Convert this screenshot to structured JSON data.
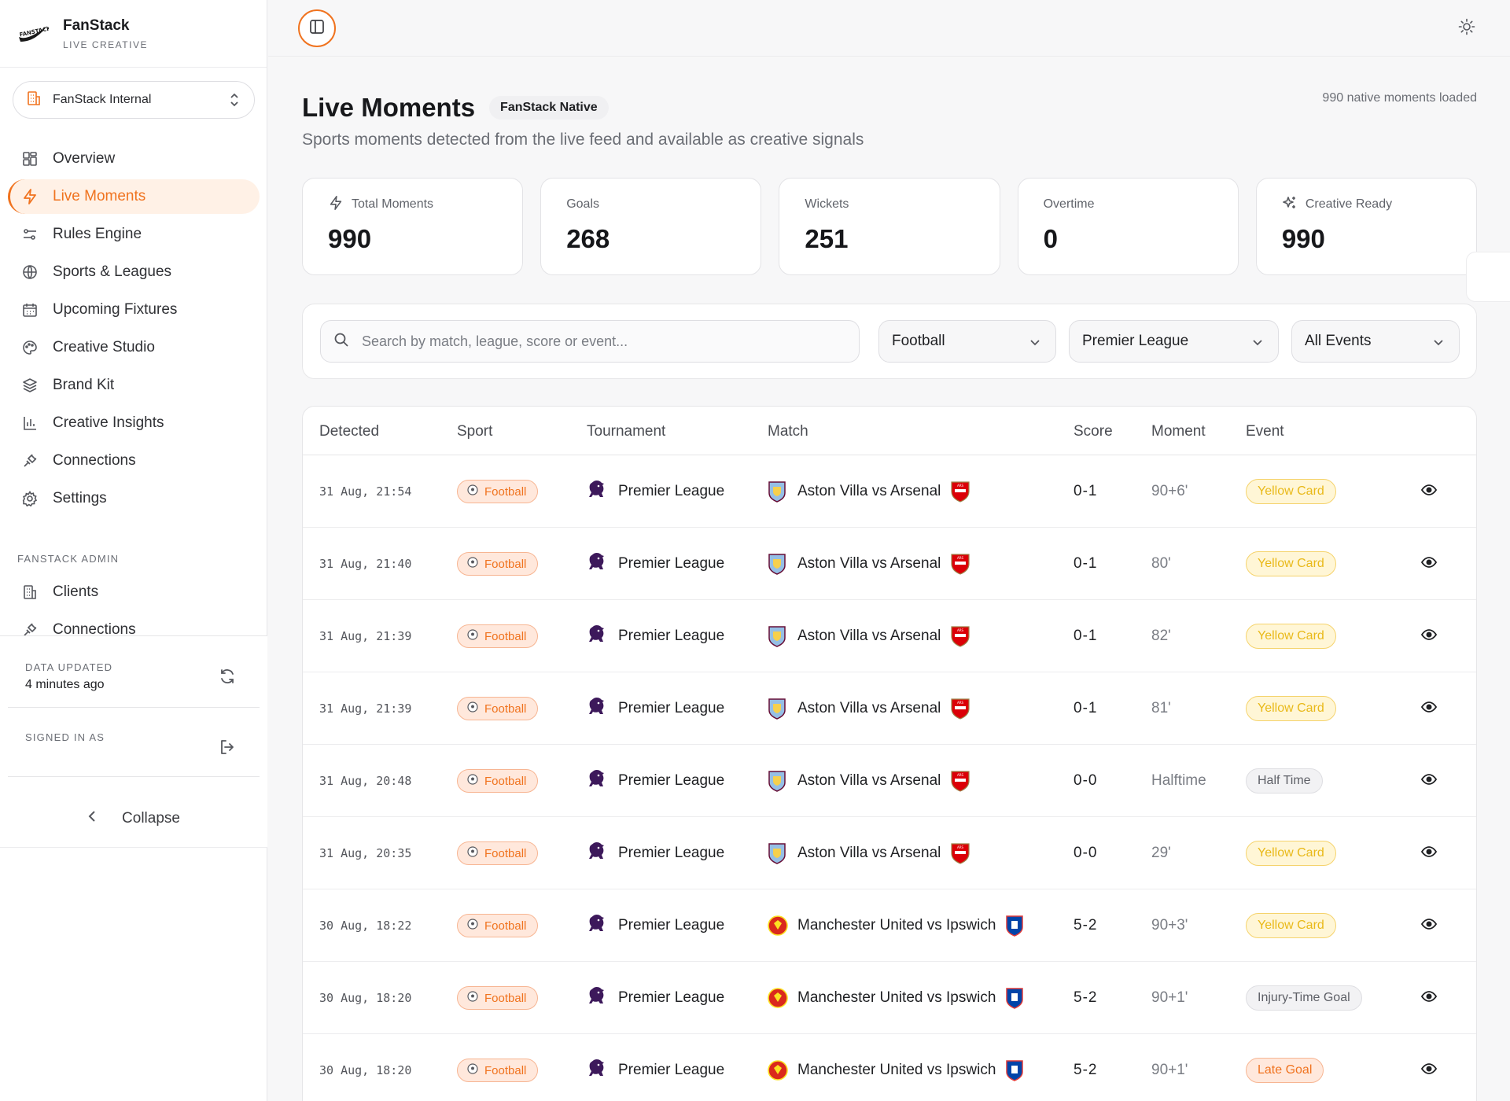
{
  "brand": {
    "name": "FanStack",
    "tagline": "LIVE CREATIVE",
    "logo_text": "FANSTACK"
  },
  "org_selector": {
    "label": "FanStack Internal"
  },
  "nav": {
    "items": [
      {
        "label": "Overview",
        "icon": "grid-icon"
      },
      {
        "label": "Live Moments",
        "icon": "lightning-icon",
        "active": true
      },
      {
        "label": "Rules Engine",
        "icon": "sliders-icon"
      },
      {
        "label": "Sports & Leagues",
        "icon": "globe-icon"
      },
      {
        "label": "Upcoming Fixtures",
        "icon": "calendar-icon"
      },
      {
        "label": "Creative Studio",
        "icon": "palette-icon"
      },
      {
        "label": "Brand Kit",
        "icon": "layers-icon"
      },
      {
        "label": "Creative Insights",
        "icon": "bar-chart-icon"
      },
      {
        "label": "Connections",
        "icon": "plug-icon"
      },
      {
        "label": "Settings",
        "icon": "gear-icon"
      }
    ],
    "admin_section_label": "FANSTACK ADMIN",
    "admin_items": [
      {
        "label": "Clients",
        "icon": "building-icon"
      },
      {
        "label": "Connections",
        "icon": "plug-icon"
      }
    ]
  },
  "footer": {
    "data_updated_label": "DATA UPDATED",
    "data_updated_value": "4 minutes ago",
    "signed_in_label": "SIGNED IN AS",
    "collapse_label": "Collapse"
  },
  "header": {
    "title": "Live Moments",
    "badge": "FanStack Native",
    "subtitle": "Sports moments detected from the live feed and available as creative signals",
    "loaded_text": "990 native moments loaded"
  },
  "stats": [
    {
      "label": "Total Moments",
      "value": "990",
      "icon": "lightning-icon"
    },
    {
      "label": "Goals",
      "value": "268"
    },
    {
      "label": "Wickets",
      "value": "251"
    },
    {
      "label": "Overtime",
      "value": "0"
    },
    {
      "label": "Creative Ready",
      "value": "990",
      "icon": "sparkle-icon"
    }
  ],
  "filters": {
    "search_placeholder": "Search by match, league, score or event...",
    "sport": "Football",
    "league": "Premier League",
    "event": "All Events"
  },
  "table": {
    "columns": [
      "Detected",
      "Sport",
      "Tournament",
      "Match",
      "Score",
      "Moment",
      "Event"
    ],
    "rows": [
      {
        "detected": "31 Aug, 21:54",
        "sport": "Football",
        "tournament": "Premier League",
        "match": "Aston Villa vs Arsenal",
        "home_crest": "aston-villa",
        "away_crest": "arsenal",
        "score": "0-1",
        "moment": "90+6'",
        "event": "Yellow Card",
        "event_style": "yellow"
      },
      {
        "detected": "31 Aug, 21:40",
        "sport": "Football",
        "tournament": "Premier League",
        "match": "Aston Villa vs Arsenal",
        "home_crest": "aston-villa",
        "away_crest": "arsenal",
        "score": "0-1",
        "moment": "80'",
        "event": "Yellow Card",
        "event_style": "yellow"
      },
      {
        "detected": "31 Aug, 21:39",
        "sport": "Football",
        "tournament": "Premier League",
        "match": "Aston Villa vs Arsenal",
        "home_crest": "aston-villa",
        "away_crest": "arsenal",
        "score": "0-1",
        "moment": "82'",
        "event": "Yellow Card",
        "event_style": "yellow"
      },
      {
        "detected": "31 Aug, 21:39",
        "sport": "Football",
        "tournament": "Premier League",
        "match": "Aston Villa vs Arsenal",
        "home_crest": "aston-villa",
        "away_crest": "arsenal",
        "score": "0-1",
        "moment": "81'",
        "event": "Yellow Card",
        "event_style": "yellow"
      },
      {
        "detected": "31 Aug, 20:48",
        "sport": "Football",
        "tournament": "Premier League",
        "match": "Aston Villa vs Arsenal",
        "home_crest": "aston-villa",
        "away_crest": "arsenal",
        "score": "0-0",
        "moment": "Halftime",
        "event": "Half Time",
        "event_style": "gray"
      },
      {
        "detected": "31 Aug, 20:35",
        "sport": "Football",
        "tournament": "Premier League",
        "match": "Aston Villa vs Arsenal",
        "home_crest": "aston-villa",
        "away_crest": "arsenal",
        "score": "0-0",
        "moment": "29'",
        "event": "Yellow Card",
        "event_style": "yellow"
      },
      {
        "detected": "30 Aug, 18:22",
        "sport": "Football",
        "tournament": "Premier League",
        "match": "Manchester United vs Ipswich",
        "home_crest": "man-utd",
        "away_crest": "ipswich",
        "score": "5-2",
        "moment": "90+3'",
        "event": "Yellow Card",
        "event_style": "yellow"
      },
      {
        "detected": "30 Aug, 18:20",
        "sport": "Football",
        "tournament": "Premier League",
        "match": "Manchester United vs Ipswich",
        "home_crest": "man-utd",
        "away_crest": "ipswich",
        "score": "5-2",
        "moment": "90+1'",
        "event": "Injury-Time Goal",
        "event_style": "gray"
      },
      {
        "detected": "30 Aug, 18:20",
        "sport": "Football",
        "tournament": "Premier League",
        "match": "Manchester United vs Ipswich",
        "home_crest": "man-utd",
        "away_crest": "ipswich",
        "score": "5-2",
        "moment": "90+1'",
        "event": "Late Goal",
        "event_style": "orange"
      }
    ]
  },
  "colors": {
    "accent": "#f0731f",
    "accent_bg": "#fff1e6",
    "yellow": "#e9b919"
  }
}
